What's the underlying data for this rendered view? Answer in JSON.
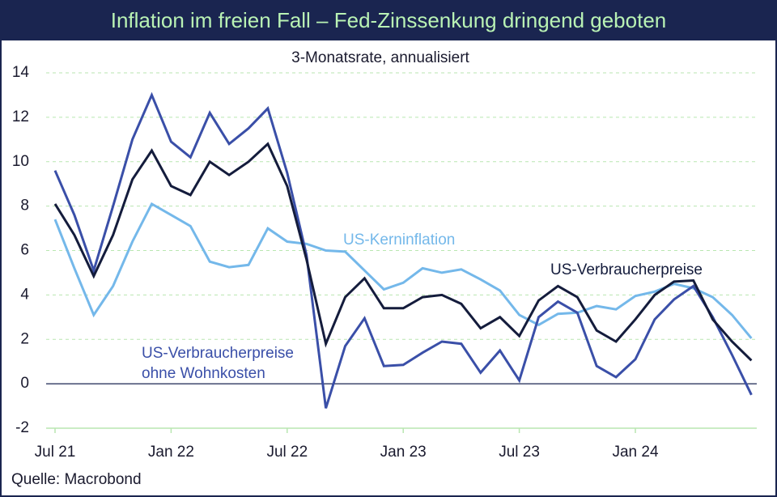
{
  "chart_data": {
    "type": "line",
    "title": "Inflation im freien Fall – Fed-Zinssenkung dringend geboten",
    "subtitle": "3-Monatsrate, annualisiert",
    "source": "Quelle: Macrobond",
    "categories": [
      "Jul 21",
      null,
      null,
      null,
      null,
      null,
      "Jan 22",
      null,
      null,
      null,
      null,
      null,
      "Jul 22",
      null,
      null,
      null,
      null,
      null,
      "Jan 23",
      null,
      null,
      null,
      null,
      null,
      "Jul 23",
      null,
      null,
      null,
      null,
      null,
      "Jan 24",
      null,
      null,
      null,
      null,
      null,
      null
    ],
    "series": [
      {
        "name": "US-Verbraucherpreise",
        "color": "#141c3c",
        "values": [
          8.1,
          6.7,
          4.85,
          6.7,
          9.2,
          10.5,
          8.9,
          8.5,
          10.0,
          9.4,
          10.0,
          10.8,
          8.9,
          5.6,
          1.8,
          3.9,
          4.75,
          3.4,
          3.4,
          3.9,
          4.0,
          3.6,
          2.5,
          3.0,
          2.15,
          3.75,
          4.4,
          3.9,
          2.4,
          1.9,
          2.9,
          4.0,
          4.6,
          4.65,
          2.9,
          1.9,
          1.05
        ]
      },
      {
        "name": "US-Verbraucherpreise ohne Wohnkosten",
        "color": "#3a4fa8",
        "values": [
          9.6,
          7.6,
          5.1,
          8.0,
          11.0,
          13.0,
          10.9,
          10.2,
          12.2,
          10.8,
          11.5,
          12.4,
          9.5,
          5.8,
          -1.1,
          1.7,
          2.95,
          0.8,
          0.85,
          1.4,
          1.9,
          1.8,
          0.5,
          1.5,
          0.15,
          3.0,
          3.7,
          3.2,
          0.8,
          0.3,
          1.1,
          2.9,
          3.8,
          4.4,
          3.0,
          1.3,
          -0.5
        ]
      },
      {
        "name": "US-Kerninflation",
        "color": "#74b8ea",
        "values": [
          7.4,
          5.2,
          3.1,
          4.4,
          6.4,
          8.1,
          7.6,
          7.1,
          5.5,
          5.25,
          5.35,
          7.0,
          6.4,
          6.3,
          6.0,
          5.95,
          5.1,
          4.25,
          4.55,
          5.2,
          5.0,
          5.15,
          4.7,
          4.2,
          3.1,
          2.65,
          3.15,
          3.2,
          3.5,
          3.35,
          3.95,
          4.15,
          4.5,
          4.3,
          3.9,
          3.1,
          2.05
        ]
      }
    ],
    "ylim": [
      -2,
      14
    ],
    "yticks": [
      -2,
      0,
      2,
      4,
      6,
      8,
      10,
      12,
      14
    ],
    "grid": true
  }
}
